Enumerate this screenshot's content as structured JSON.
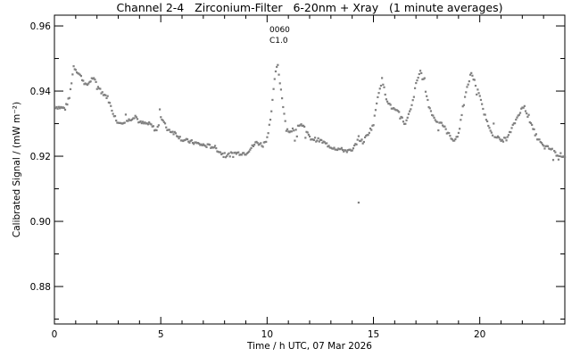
{
  "chart_data": {
    "type": "scatter",
    "title": "Channel 2-4   Zirconium-Filter   6-20nm + Xray   (1 minute averages)",
    "xlabel": "Time / h UTC, 07 Mar 2026",
    "ylabel": "Calibrated Signal / (mW m⁻²)",
    "xlim": [
      0,
      24
    ],
    "ylim": [
      0.8685,
      0.9633
    ],
    "xticks": [
      "0",
      "5",
      "10",
      "15",
      "20"
    ],
    "xtick_values": [
      0,
      5,
      10,
      15,
      20
    ],
    "yticks": [
      "0.88",
      "0.90",
      "0.92",
      "0.94",
      "0.96"
    ],
    "ytick_values": [
      0.88,
      0.9,
      0.92,
      0.94,
      0.96
    ],
    "annotation": [
      "0060",
      "C1.0"
    ],
    "color": "#808080",
    "series": [
      {
        "name": "1 minute averages",
        "x": [
          0,
          0.5,
          0.7,
          0.9,
          1.2,
          1.5,
          1.8,
          2.2,
          2.5,
          2.8,
          3.0,
          3.5,
          3.8,
          4.0,
          4.5,
          4.8,
          5.0,
          5.3,
          5.7,
          6.0,
          6.5,
          7.0,
          7.5,
          8.0,
          8.5,
          9.0,
          9.3,
          9.5,
          9.8,
          10.0,
          10.2,
          10.4,
          10.5,
          10.7,
          10.9,
          11.2,
          11.5,
          11.8,
          12.0,
          12.5,
          13.0,
          13.5,
          14.0,
          14.3,
          14.5,
          14.8,
          15.0,
          15.2,
          15.4,
          15.6,
          15.8,
          16.2,
          16.5,
          16.8,
          17.0,
          17.2,
          17.4,
          17.6,
          17.9,
          18.2,
          18.5,
          18.8,
          19.0,
          19.3,
          19.5,
          19.6,
          19.8,
          20.0,
          20.3,
          20.6,
          21.0,
          21.3,
          21.6,
          21.9,
          22.1,
          22.4,
          22.7,
          23.0,
          23.3,
          23.6,
          24.0
        ],
        "y": [
          0.9353,
          0.9347,
          0.938,
          0.9476,
          0.9449,
          0.9416,
          0.9441,
          0.9399,
          0.938,
          0.9325,
          0.9303,
          0.9311,
          0.9325,
          0.9303,
          0.9298,
          0.9278,
          0.932,
          0.9284,
          0.927,
          0.9251,
          0.9243,
          0.9234,
          0.9229,
          0.9201,
          0.921,
          0.921,
          0.9229,
          0.9243,
          0.9234,
          0.9256,
          0.9339,
          0.9463,
          0.9476,
          0.938,
          0.9284,
          0.927,
          0.9298,
          0.9284,
          0.9256,
          0.9248,
          0.9229,
          0.922,
          0.9215,
          0.9256,
          0.9243,
          0.9276,
          0.9298,
          0.9386,
          0.9435,
          0.938,
          0.9353,
          0.9331,
          0.9298,
          0.9353,
          0.9421,
          0.9463,
          0.9421,
          0.9353,
          0.9311,
          0.9303,
          0.927,
          0.9248,
          0.927,
          0.938,
          0.9435,
          0.9457,
          0.9421,
          0.938,
          0.9311,
          0.927,
          0.9248,
          0.9256,
          0.9298,
          0.9339,
          0.9353,
          0.9298,
          0.9256,
          0.9229,
          0.9224,
          0.9207,
          0.9201
        ]
      }
    ],
    "outliers": {
      "x": [
        14.3
      ],
      "y": [
        0.9058
      ]
    }
  }
}
